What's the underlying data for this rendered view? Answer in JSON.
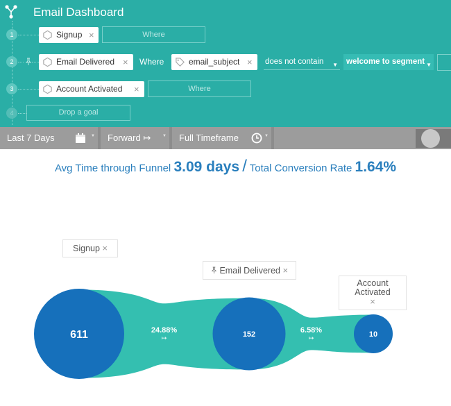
{
  "app": {
    "title": "Email Dashboard"
  },
  "steps": [
    {
      "number": "1",
      "event": "Signup",
      "where_placeholder": "Where"
    },
    {
      "number": "2",
      "event": "Email Delivered",
      "where_label": "Where",
      "filter": {
        "property": "email_subject",
        "operator": "does not contain",
        "value": "welcome to segment"
      }
    },
    {
      "number": "3",
      "event": "Account Activated",
      "where_placeholder": "Where"
    },
    {
      "number": "4",
      "placeholder": "Drop a goal"
    }
  ],
  "toolbar": {
    "range": "Last 7 Days",
    "direction": "Forward ↦",
    "timeframe": "Full Timeframe"
  },
  "summary": {
    "avg_label": "Avg Time through Funnel",
    "avg_value": "3.09 days",
    "separator": "/",
    "conv_label": "Total Conversion Rate",
    "conv_value": "1.64%"
  },
  "chart_data": {
    "type": "funnel",
    "stages": [
      {
        "name": "Signup",
        "count": 611
      },
      {
        "name": "Email Delivered",
        "count": 152
      },
      {
        "name": "Account Activated",
        "count": 10
      }
    ],
    "conversions": [
      "24.88%",
      "6.58%"
    ],
    "colors": {
      "node": "#1670bb",
      "flow": "#34bfb0"
    }
  },
  "colors": {
    "header": "#2aaea6",
    "toolbar": "#9c9c9c",
    "accent": "#2a7fbd"
  }
}
